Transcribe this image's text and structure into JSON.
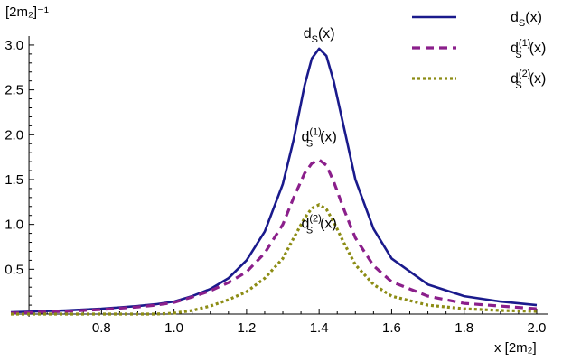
{
  "chart_data": {
    "type": "line",
    "ylabel": "[2m₂]⁻¹",
    "xlabel": "x   [2m₂]",
    "xlim": [
      0.55,
      2.02
    ],
    "ylim": [
      -0.02,
      3.1
    ],
    "x_axis_crossing_y": 0.0,
    "y_axis_crossing_x": 0.6,
    "xticks": [
      0.8,
      1.0,
      1.2,
      1.4,
      1.6,
      1.8,
      2.0
    ],
    "xtick_labels": [
      "0.8",
      "1.0",
      "1.2",
      "1.4",
      "1.6",
      "1.8",
      "2.0"
    ],
    "yticks": [
      0.5,
      1.0,
      1.5,
      2.0,
      2.5,
      3.0
    ],
    "ytick_labels": [
      "0.5",
      "1.0",
      "1.5",
      "2.0",
      "2.5",
      "3.0"
    ],
    "grid": false,
    "legend_position": "top-right",
    "series": [
      {
        "name": "d_S(x)",
        "label_base": "d",
        "label_sub": "S",
        "label_sup": "",
        "label_tail": "(x)",
        "color": "#1a1a8c",
        "style": "solid",
        "x": [
          0.55,
          0.7,
          0.8,
          0.9,
          0.95,
          1.0,
          1.05,
          1.1,
          1.15,
          1.2,
          1.25,
          1.3,
          1.33,
          1.36,
          1.38,
          1.4,
          1.42,
          1.44,
          1.47,
          1.5,
          1.55,
          1.6,
          1.7,
          1.8,
          1.9,
          2.0
        ],
        "y": [
          0.02,
          0.04,
          0.06,
          0.09,
          0.11,
          0.14,
          0.2,
          0.28,
          0.4,
          0.6,
          0.92,
          1.45,
          1.95,
          2.55,
          2.85,
          2.96,
          2.88,
          2.6,
          2.05,
          1.5,
          0.95,
          0.62,
          0.33,
          0.2,
          0.14,
          0.1
        ]
      },
      {
        "name": "d_S^(1)(x)",
        "label_base": "d",
        "label_sub": "S",
        "label_sup": "(1)",
        "label_tail": "(x)",
        "color": "#8b1f8b",
        "style": "dashed",
        "x": [
          0.55,
          0.7,
          0.8,
          0.9,
          0.95,
          1.0,
          1.05,
          1.1,
          1.15,
          1.2,
          1.25,
          1.3,
          1.33,
          1.36,
          1.38,
          1.4,
          1.42,
          1.44,
          1.47,
          1.5,
          1.55,
          1.6,
          1.7,
          1.8,
          1.9,
          2.0
        ],
        "y": [
          0.01,
          0.03,
          0.05,
          0.08,
          0.1,
          0.13,
          0.19,
          0.26,
          0.35,
          0.47,
          0.68,
          1.0,
          1.3,
          1.57,
          1.68,
          1.72,
          1.66,
          1.48,
          1.15,
          0.85,
          0.54,
          0.36,
          0.2,
          0.12,
          0.09,
          0.06
        ]
      },
      {
        "name": "d_S^(2)(x)",
        "label_base": "d",
        "label_sub": "S",
        "label_sup": "(2)",
        "label_tail": "(x)",
        "color": "#8c8c14",
        "style": "dotted",
        "x": [
          0.55,
          0.7,
          0.8,
          0.9,
          0.95,
          1.0,
          1.05,
          1.1,
          1.15,
          1.2,
          1.25,
          1.3,
          1.33,
          1.36,
          1.38,
          1.4,
          1.42,
          1.44,
          1.47,
          1.5,
          1.55,
          1.6,
          1.7,
          1.8,
          1.9,
          2.0
        ],
        "y": [
          0.0,
          0.0,
          0.0,
          0.0,
          0.0,
          0.01,
          0.04,
          0.09,
          0.16,
          0.25,
          0.4,
          0.62,
          0.85,
          1.07,
          1.18,
          1.22,
          1.17,
          1.03,
          0.78,
          0.55,
          0.33,
          0.2,
          0.1,
          0.06,
          0.04,
          0.03
        ]
      }
    ],
    "annotations": [
      {
        "series": 0,
        "x": 1.4,
        "y": 3.08
      },
      {
        "series": 1,
        "x": 1.4,
        "y": 1.93
      },
      {
        "series": 2,
        "x": 1.4,
        "y": 0.96
      }
    ]
  }
}
